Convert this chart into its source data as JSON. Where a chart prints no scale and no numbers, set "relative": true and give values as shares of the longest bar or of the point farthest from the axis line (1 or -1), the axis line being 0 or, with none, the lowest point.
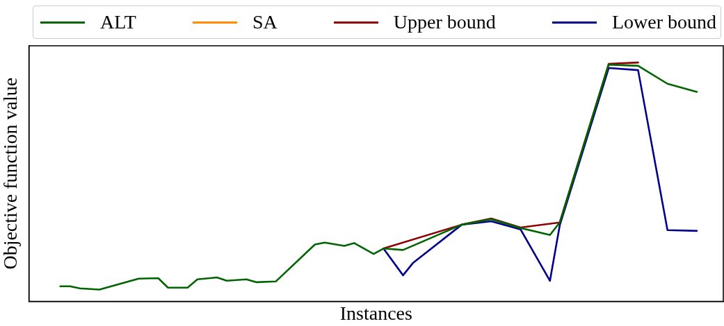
{
  "chart_data": {
    "type": "line",
    "relative": true,
    "xlabel": "Instances",
    "ylabel": "Objective function value",
    "legend": "top",
    "grid": false,
    "tick_labels": false,
    "line_style": "solid",
    "marker": "none",
    "categories": [
      null,
      null,
      null,
      null,
      null,
      null,
      null,
      null,
      null,
      null,
      null,
      null,
      null,
      null,
      null,
      null,
      null,
      null,
      null,
      null,
      null,
      null,
      null,
      null,
      null,
      null,
      null,
      null,
      null,
      null,
      null,
      null,
      null,
      null,
      null,
      null,
      null,
      null,
      null,
      null,
      null,
      null,
      null,
      null,
      null,
      null,
      null,
      null,
      null,
      null,
      null,
      null,
      null,
      null,
      null,
      null,
      null,
      null,
      null,
      null,
      null,
      null,
      null,
      null,
      null,
      null
    ],
    "series": [
      {
        "name": "ALT",
        "color": "#006400",
        "values": [
          0.063,
          0.063,
          0.054,
          null,
          0.049,
          null,
          null,
          null,
          0.095,
          null,
          0.097,
          0.057,
          null,
          0.057,
          0.092,
          null,
          0.1,
          0.086,
          null,
          0.092,
          0.08,
          null,
          0.083,
          null,
          null,
          null,
          0.238,
          0.246,
          null,
          0.232,
          0.244,
          null,
          0.198,
          0.221,
          null,
          0.215,
          null,
          null,
          null,
          null,
          null,
          0.321,
          null,
          null,
          0.344,
          null,
          null,
          0.307,
          null,
          null,
          0.278,
          0.33,
          null,
          null,
          null,
          null,
          0.991,
          null,
          null,
          0.986,
          null,
          null,
          0.911,
          null,
          null,
          0.877
        ]
      },
      {
        "name": "SA",
        "color": "#ff8c00",
        "values": [
          null,
          null,
          null,
          null,
          null,
          null,
          null,
          null,
          null,
          null,
          null,
          null,
          null,
          null,
          null,
          null,
          null,
          null,
          null,
          null,
          null,
          null,
          null,
          null,
          null,
          null,
          null,
          null,
          null,
          null,
          null,
          null,
          null,
          null,
          null,
          null,
          null,
          null,
          null,
          null,
          null,
          null,
          null,
          null,
          null,
          null,
          null,
          null,
          null,
          null,
          null,
          null,
          null,
          null,
          null,
          null,
          null,
          null,
          null,
          null,
          null,
          null,
          null,
          null,
          null,
          null
        ]
      },
      {
        "name": "Upper bound",
        "color": "#8b0000",
        "values": [
          null,
          null,
          null,
          null,
          null,
          null,
          null,
          null,
          null,
          null,
          null,
          null,
          null,
          null,
          null,
          null,
          null,
          null,
          null,
          null,
          null,
          null,
          null,
          null,
          null,
          null,
          null,
          null,
          null,
          null,
          null,
          null,
          null,
          0.221,
          null,
          null,
          null,
          null,
          null,
          null,
          null,
          0.321,
          null,
          null,
          0.347,
          null,
          null,
          0.309,
          null,
          null,
          null,
          0.33,
          null,
          null,
          null,
          null,
          0.994,
          null,
          null,
          1,
          null,
          null,
          null,
          null,
          null,
          null
        ]
      },
      {
        "name": "Lower bound",
        "color": "#00008b",
        "values": [
          null,
          null,
          null,
          null,
          null,
          null,
          null,
          null,
          null,
          null,
          null,
          null,
          null,
          null,
          null,
          null,
          null,
          null,
          null,
          null,
          null,
          null,
          null,
          null,
          null,
          null,
          null,
          null,
          null,
          null,
          null,
          null,
          null,
          0.221,
          null,
          0.109,
          0.16,
          null,
          null,
          null,
          null,
          0.321,
          null,
          null,
          0.335,
          null,
          null,
          0.301,
          null,
          null,
          0.086,
          0.318,
          null,
          null,
          null,
          null,
          0.977,
          null,
          null,
          0.968,
          null,
          null,
          0.298,
          null,
          null,
          0.295
        ]
      }
    ]
  }
}
